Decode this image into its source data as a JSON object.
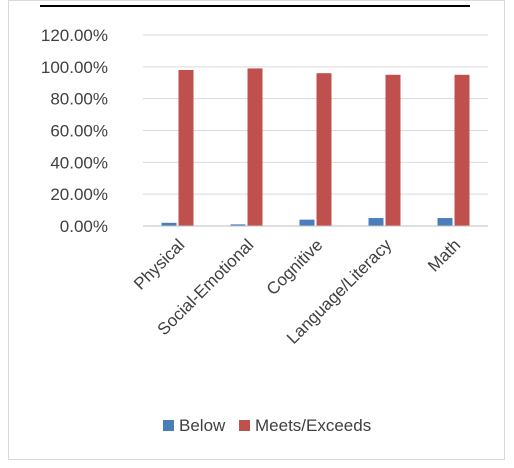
{
  "chart_data": {
    "type": "bar",
    "title": "",
    "xlabel": "",
    "ylabel": "",
    "categories": [
      "Physical",
      "Social-Emotional",
      "Cognitive",
      "Language/Literacy",
      "Math"
    ],
    "series": [
      {
        "name": "Below",
        "values": [
          0.02,
          0.01,
          0.04,
          0.05,
          0.05
        ],
        "color": "#4a7ebb"
      },
      {
        "name": "Meets/Exceeds",
        "values": [
          0.98,
          0.99,
          0.96,
          0.95,
          0.95
        ],
        "color": "#c0504d"
      }
    ],
    "ylim": [
      0,
      1.2
    ],
    "yticks": [
      "0.00%",
      "20.00%",
      "40.00%",
      "60.00%",
      "80.00%",
      "100.00%",
      "120.00%"
    ],
    "grid": true,
    "legend_position": "bottom"
  }
}
